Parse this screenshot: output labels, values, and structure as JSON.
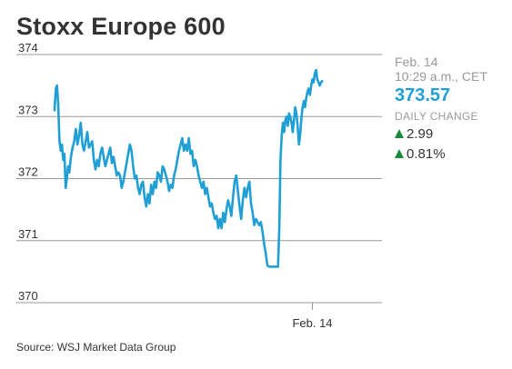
{
  "title": "Stoxx Europe 600",
  "source": "Source: WSJ Market Data Group",
  "quote": {
    "date": "Feb. 14",
    "time": "10:29 a.m., CET",
    "price": "373.57",
    "change_label": "DAILY CHANGE",
    "change_points": "2.99",
    "change_percent": "0.81%"
  },
  "colors": {
    "line": "#1f9fd4",
    "price": "#1f9fd4",
    "up_arrow": "#1a8a3a",
    "grid": "#999999",
    "text": "#333333",
    "muted": "#999999"
  },
  "chart_data": {
    "type": "line",
    "title": "Stoxx Europe 600",
    "xlabel": "",
    "ylabel": "",
    "ylim": [
      370,
      374
    ],
    "yticks": [
      "374",
      "373",
      "372",
      "371",
      "370"
    ],
    "ytick_values": [
      374,
      373,
      372,
      371,
      370
    ],
    "xticks": [
      {
        "label": "Feb. 14",
        "x": 63
      }
    ],
    "xlim": [
      0,
      80
    ],
    "grid": true,
    "series": [
      {
        "values": [
          [
            0.0,
            373.1
          ],
          [
            0.3,
            373.45
          ],
          [
            0.6,
            373.5
          ],
          [
            0.9,
            373.2
          ],
          [
            1.2,
            372.6
          ],
          [
            1.5,
            372.45
          ],
          [
            1.8,
            372.55
          ],
          [
            2.1,
            372.3
          ],
          [
            2.4,
            372.4
          ],
          [
            2.7,
            371.85
          ],
          [
            3.0,
            372.0
          ],
          [
            3.3,
            372.2
          ],
          [
            3.6,
            372.1
          ],
          [
            4.0,
            372.35
          ],
          [
            4.4,
            372.5
          ],
          [
            4.8,
            372.6
          ],
          [
            5.2,
            372.8
          ],
          [
            5.6,
            372.55
          ],
          [
            6.0,
            372.7
          ],
          [
            6.4,
            372.9
          ],
          [
            6.8,
            372.55
          ],
          [
            7.2,
            372.45
          ],
          [
            7.6,
            372.6
          ],
          [
            8.0,
            372.75
          ],
          [
            8.4,
            372.5
          ],
          [
            8.8,
            372.55
          ],
          [
            9.2,
            372.6
          ],
          [
            9.6,
            372.3
          ],
          [
            10.0,
            372.15
          ],
          [
            10.4,
            372.3
          ],
          [
            10.8,
            372.2
          ],
          [
            11.2,
            372.4
          ],
          [
            11.6,
            372.5
          ],
          [
            12.0,
            372.35
          ],
          [
            12.4,
            372.2
          ],
          [
            12.8,
            372.3
          ],
          [
            13.2,
            372.4
          ],
          [
            13.6,
            372.5
          ],
          [
            14.0,
            372.25
          ],
          [
            14.4,
            372.35
          ],
          [
            14.8,
            372.2
          ],
          [
            15.2,
            372.05
          ],
          [
            15.6,
            372.1
          ],
          [
            16.0,
            372.05
          ],
          [
            16.4,
            371.85
          ],
          [
            16.8,
            371.95
          ],
          [
            17.2,
            372.1
          ],
          [
            17.6,
            372.25
          ],
          [
            18.0,
            372.4
          ],
          [
            18.4,
            372.55
          ],
          [
            18.8,
            372.45
          ],
          [
            19.2,
            372.2
          ],
          [
            19.6,
            372.0
          ],
          [
            20.0,
            372.05
          ],
          [
            20.4,
            371.85
          ],
          [
            20.8,
            371.75
          ],
          [
            21.2,
            371.9
          ],
          [
            21.6,
            371.95
          ],
          [
            22.0,
            371.7
          ],
          [
            22.4,
            371.55
          ],
          [
            22.8,
            371.75
          ],
          [
            23.2,
            371.6
          ],
          [
            23.6,
            371.9
          ],
          [
            24.0,
            371.75
          ],
          [
            24.4,
            371.95
          ],
          [
            24.8,
            371.85
          ],
          [
            25.2,
            372.1
          ],
          [
            25.6,
            372.05
          ],
          [
            26.0,
            371.95
          ],
          [
            26.4,
            372.2
          ],
          [
            26.8,
            372.15
          ],
          [
            27.2,
            372.05
          ],
          [
            27.6,
            371.95
          ],
          [
            28.0,
            371.8
          ],
          [
            28.4,
            371.9
          ],
          [
            28.8,
            371.85
          ],
          [
            29.2,
            372.05
          ],
          [
            29.6,
            372.15
          ],
          [
            30.0,
            372.3
          ],
          [
            30.4,
            372.45
          ],
          [
            30.8,
            372.55
          ],
          [
            31.2,
            372.65
          ],
          [
            31.6,
            372.45
          ],
          [
            32.0,
            372.55
          ],
          [
            32.4,
            372.45
          ],
          [
            32.8,
            372.65
          ],
          [
            33.2,
            372.4
          ],
          [
            33.6,
            372.45
          ],
          [
            34.0,
            372.2
          ],
          [
            34.4,
            372.3
          ],
          [
            34.8,
            372.2
          ],
          [
            35.2,
            372.05
          ],
          [
            35.6,
            371.95
          ],
          [
            36.0,
            371.85
          ],
          [
            36.4,
            371.95
          ],
          [
            36.8,
            371.75
          ],
          [
            37.2,
            371.85
          ],
          [
            37.6,
            371.7
          ],
          [
            38.0,
            371.55
          ],
          [
            38.4,
            371.6
          ],
          [
            38.8,
            371.45
          ],
          [
            39.2,
            371.35
          ],
          [
            39.6,
            371.4
          ],
          [
            40.0,
            371.2
          ],
          [
            40.4,
            371.35
          ],
          [
            40.8,
            371.2
          ],
          [
            41.2,
            371.45
          ],
          [
            41.6,
            371.3
          ],
          [
            42.0,
            371.5
          ],
          [
            42.4,
            371.65
          ],
          [
            42.8,
            371.55
          ],
          [
            43.2,
            371.4
          ],
          [
            43.6,
            371.7
          ],
          [
            44.0,
            371.95
          ],
          [
            44.4,
            372.05
          ],
          [
            44.8,
            371.8
          ],
          [
            45.2,
            371.55
          ],
          [
            45.6,
            371.35
          ],
          [
            46.0,
            371.65
          ],
          [
            46.4,
            371.85
          ],
          [
            46.8,
            371.7
          ],
          [
            47.2,
            371.85
          ],
          [
            47.6,
            371.95
          ],
          [
            48.0,
            371.6
          ],
          [
            48.4,
            371.45
          ],
          [
            48.8,
            371.25
          ],
          [
            49.2,
            371.35
          ],
          [
            49.6,
            371.3
          ],
          [
            50.0,
            371.25
          ],
          [
            50.4,
            371.3
          ],
          [
            50.8,
            371.15
          ],
          [
            51.2,
            370.95
          ],
          [
            51.6,
            370.8
          ],
          [
            52.0,
            370.6
          ],
          [
            52.4,
            370.58
          ],
          [
            53.0,
            370.58
          ],
          [
            53.6,
            370.58
          ],
          [
            54.2,
            370.58
          ],
          [
            54.6,
            370.58
          ],
          [
            54.9,
            371.2
          ],
          [
            55.2,
            372.3
          ],
          [
            55.5,
            372.7
          ],
          [
            55.8,
            372.9
          ],
          [
            56.1,
            372.75
          ],
          [
            56.4,
            372.95
          ],
          [
            56.7,
            373.0
          ],
          [
            57.0,
            372.85
          ],
          [
            57.3,
            373.05
          ],
          [
            57.6,
            373.0
          ],
          [
            57.9,
            372.9
          ],
          [
            58.2,
            372.75
          ],
          [
            58.5,
            372.95
          ],
          [
            58.8,
            373.15
          ],
          [
            59.1,
            373.05
          ],
          [
            59.4,
            372.85
          ],
          [
            59.7,
            372.55
          ],
          [
            60.0,
            372.7
          ],
          [
            60.3,
            372.95
          ],
          [
            60.6,
            373.15
          ],
          [
            60.9,
            373.25
          ],
          [
            61.2,
            373.15
          ],
          [
            61.5,
            373.3
          ],
          [
            61.8,
            373.4
          ],
          [
            62.1,
            373.45
          ],
          [
            62.4,
            373.35
          ],
          [
            62.7,
            373.5
          ],
          [
            63.0,
            373.6
          ],
          [
            63.3,
            373.55
          ],
          [
            63.6,
            373.7
          ],
          [
            63.9,
            373.75
          ],
          [
            64.2,
            373.6
          ],
          [
            64.5,
            373.55
          ],
          [
            64.8,
            373.5
          ],
          [
            65.1,
            373.55
          ],
          [
            65.4,
            373.57
          ]
        ]
      }
    ]
  }
}
